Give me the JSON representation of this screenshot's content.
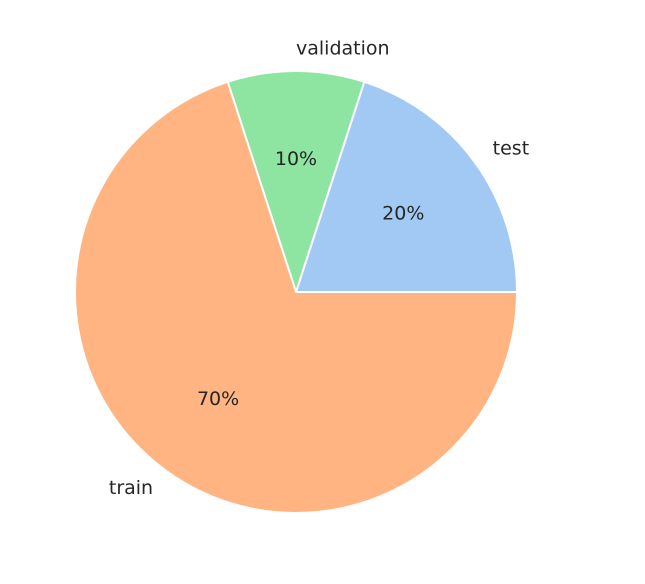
{
  "chart_data": {
    "type": "pie",
    "categories": [
      "test",
      "validation",
      "train"
    ],
    "values": [
      20,
      10,
      70
    ],
    "pct_labels": [
      "20%",
      "10%",
      "70%"
    ],
    "colors": [
      "#a1c9f4",
      "#8de5a1",
      "#ffb482"
    ],
    "start_angle_deg": 0,
    "direction": "counterclockwise",
    "title": "",
    "legend": "none"
  }
}
